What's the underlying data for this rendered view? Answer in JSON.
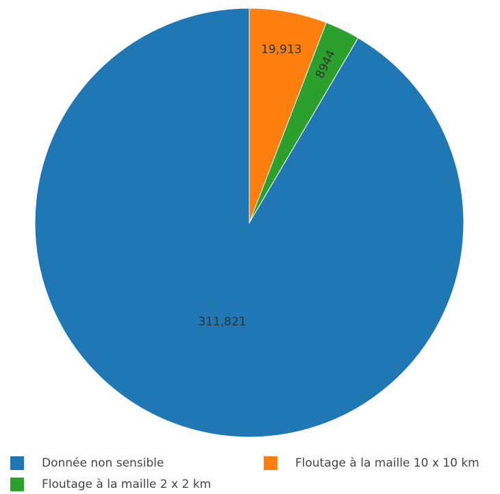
{
  "chart_data": {
    "type": "pie",
    "categories": [
      "Donnée non sensible",
      "Floutage à la maille 2 x 2 km",
      "Floutage à la maille 10 x 10 km"
    ],
    "values": [
      311821,
      8944,
      19913
    ],
    "value_labels": [
      "311,821",
      "8944",
      "19,913"
    ],
    "colors": [
      "#1f77b4",
      "#2ca02c",
      "#ff7f0e"
    ],
    "start_angle_deg": 0,
    "direction": "counterclockwise",
    "legend_position": "bottom",
    "title": ""
  },
  "legend": {
    "items": [
      {
        "label": "Donnée non sensible",
        "color": "#1f77b4"
      },
      {
        "label": "Floutage à la maille 10 x 10 km",
        "color": "#ff7f0e"
      },
      {
        "label": "Floutage à la maille 2 x 2 km",
        "color": "#2ca02c"
      }
    ]
  }
}
